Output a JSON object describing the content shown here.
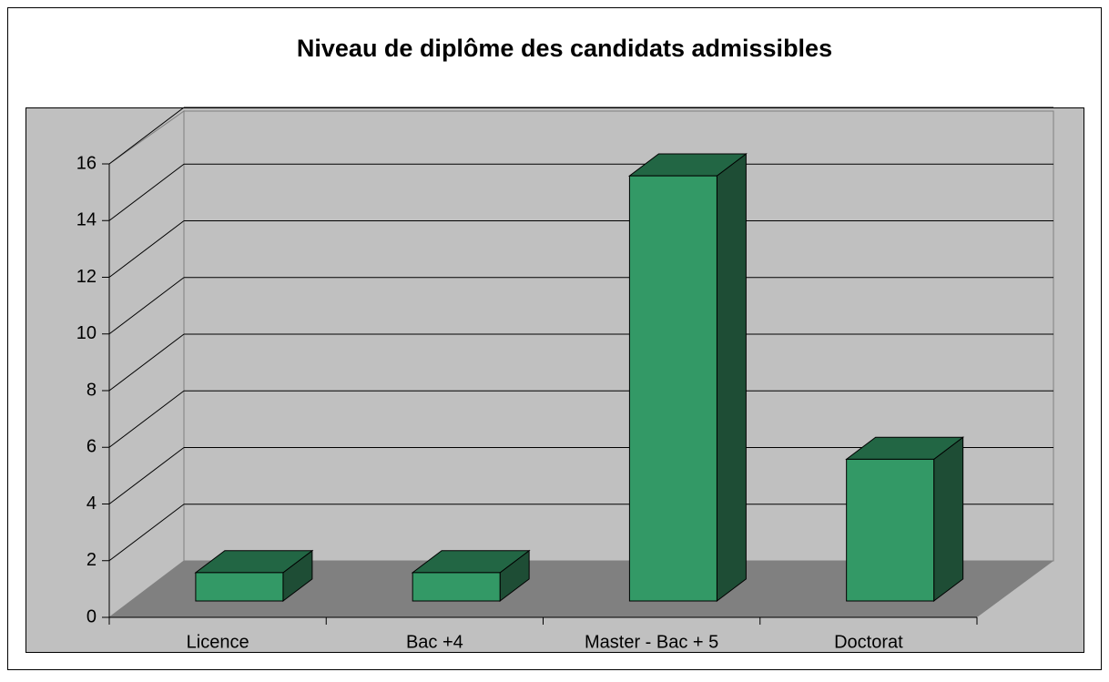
{
  "chart_data": {
    "type": "bar3d",
    "title": "Niveau de diplôme des candidats admissibles",
    "categories": [
      "Licence",
      "Bac +4",
      "Master - Bac + 5",
      "Doctorat"
    ],
    "values": [
      1,
      1,
      15,
      5
    ],
    "color": "#339966",
    "ylim": [
      0,
      16
    ],
    "yticks": [
      0,
      2,
      4,
      6,
      8,
      10,
      12,
      14,
      16
    ],
    "grid": true
  }
}
